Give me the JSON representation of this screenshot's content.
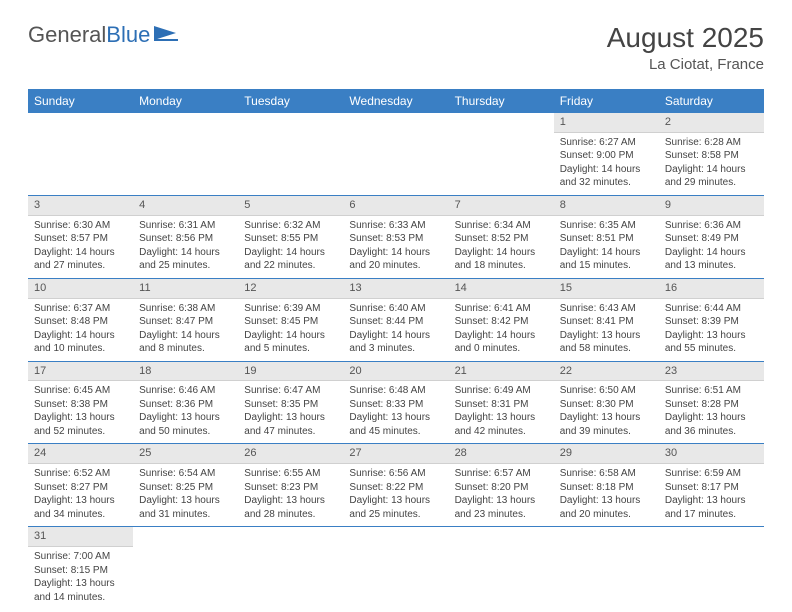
{
  "logo": {
    "text_gray": "General",
    "text_blue": "Blue"
  },
  "title": "August 2025",
  "location": "La Ciotat, France",
  "colors": {
    "header_bg": "#3a7fc4",
    "header_text": "#ffffff",
    "daynum_bg": "#e8e8e8",
    "row_border": "#3a7fc4",
    "body_text": "#444444",
    "logo_gray": "#555555",
    "logo_blue": "#2d6fb5",
    "page_bg": "#ffffff"
  },
  "typography": {
    "month_title_size": 28,
    "location_size": 15,
    "weekday_size": 12,
    "daynum_size": 11,
    "body_size": 10,
    "font_family": "Arial"
  },
  "weekdays": [
    "Sunday",
    "Monday",
    "Tuesday",
    "Wednesday",
    "Thursday",
    "Friday",
    "Saturday"
  ],
  "weeks": [
    [
      null,
      null,
      null,
      null,
      null,
      {
        "n": "1",
        "sr": "Sunrise: 6:27 AM",
        "ss": "Sunset: 9:00 PM",
        "d1": "Daylight: 14 hours",
        "d2": "and 32 minutes."
      },
      {
        "n": "2",
        "sr": "Sunrise: 6:28 AM",
        "ss": "Sunset: 8:58 PM",
        "d1": "Daylight: 14 hours",
        "d2": "and 29 minutes."
      }
    ],
    [
      {
        "n": "3",
        "sr": "Sunrise: 6:30 AM",
        "ss": "Sunset: 8:57 PM",
        "d1": "Daylight: 14 hours",
        "d2": "and 27 minutes."
      },
      {
        "n": "4",
        "sr": "Sunrise: 6:31 AM",
        "ss": "Sunset: 8:56 PM",
        "d1": "Daylight: 14 hours",
        "d2": "and 25 minutes."
      },
      {
        "n": "5",
        "sr": "Sunrise: 6:32 AM",
        "ss": "Sunset: 8:55 PM",
        "d1": "Daylight: 14 hours",
        "d2": "and 22 minutes."
      },
      {
        "n": "6",
        "sr": "Sunrise: 6:33 AM",
        "ss": "Sunset: 8:53 PM",
        "d1": "Daylight: 14 hours",
        "d2": "and 20 minutes."
      },
      {
        "n": "7",
        "sr": "Sunrise: 6:34 AM",
        "ss": "Sunset: 8:52 PM",
        "d1": "Daylight: 14 hours",
        "d2": "and 18 minutes."
      },
      {
        "n": "8",
        "sr": "Sunrise: 6:35 AM",
        "ss": "Sunset: 8:51 PM",
        "d1": "Daylight: 14 hours",
        "d2": "and 15 minutes."
      },
      {
        "n": "9",
        "sr": "Sunrise: 6:36 AM",
        "ss": "Sunset: 8:49 PM",
        "d1": "Daylight: 14 hours",
        "d2": "and 13 minutes."
      }
    ],
    [
      {
        "n": "10",
        "sr": "Sunrise: 6:37 AM",
        "ss": "Sunset: 8:48 PM",
        "d1": "Daylight: 14 hours",
        "d2": "and 10 minutes."
      },
      {
        "n": "11",
        "sr": "Sunrise: 6:38 AM",
        "ss": "Sunset: 8:47 PM",
        "d1": "Daylight: 14 hours",
        "d2": "and 8 minutes."
      },
      {
        "n": "12",
        "sr": "Sunrise: 6:39 AM",
        "ss": "Sunset: 8:45 PM",
        "d1": "Daylight: 14 hours",
        "d2": "and 5 minutes."
      },
      {
        "n": "13",
        "sr": "Sunrise: 6:40 AM",
        "ss": "Sunset: 8:44 PM",
        "d1": "Daylight: 14 hours",
        "d2": "and 3 minutes."
      },
      {
        "n": "14",
        "sr": "Sunrise: 6:41 AM",
        "ss": "Sunset: 8:42 PM",
        "d1": "Daylight: 14 hours",
        "d2": "and 0 minutes."
      },
      {
        "n": "15",
        "sr": "Sunrise: 6:43 AM",
        "ss": "Sunset: 8:41 PM",
        "d1": "Daylight: 13 hours",
        "d2": "and 58 minutes."
      },
      {
        "n": "16",
        "sr": "Sunrise: 6:44 AM",
        "ss": "Sunset: 8:39 PM",
        "d1": "Daylight: 13 hours",
        "d2": "and 55 minutes."
      }
    ],
    [
      {
        "n": "17",
        "sr": "Sunrise: 6:45 AM",
        "ss": "Sunset: 8:38 PM",
        "d1": "Daylight: 13 hours",
        "d2": "and 52 minutes."
      },
      {
        "n": "18",
        "sr": "Sunrise: 6:46 AM",
        "ss": "Sunset: 8:36 PM",
        "d1": "Daylight: 13 hours",
        "d2": "and 50 minutes."
      },
      {
        "n": "19",
        "sr": "Sunrise: 6:47 AM",
        "ss": "Sunset: 8:35 PM",
        "d1": "Daylight: 13 hours",
        "d2": "and 47 minutes."
      },
      {
        "n": "20",
        "sr": "Sunrise: 6:48 AM",
        "ss": "Sunset: 8:33 PM",
        "d1": "Daylight: 13 hours",
        "d2": "and 45 minutes."
      },
      {
        "n": "21",
        "sr": "Sunrise: 6:49 AM",
        "ss": "Sunset: 8:31 PM",
        "d1": "Daylight: 13 hours",
        "d2": "and 42 minutes."
      },
      {
        "n": "22",
        "sr": "Sunrise: 6:50 AM",
        "ss": "Sunset: 8:30 PM",
        "d1": "Daylight: 13 hours",
        "d2": "and 39 minutes."
      },
      {
        "n": "23",
        "sr": "Sunrise: 6:51 AM",
        "ss": "Sunset: 8:28 PM",
        "d1": "Daylight: 13 hours",
        "d2": "and 36 minutes."
      }
    ],
    [
      {
        "n": "24",
        "sr": "Sunrise: 6:52 AM",
        "ss": "Sunset: 8:27 PM",
        "d1": "Daylight: 13 hours",
        "d2": "and 34 minutes."
      },
      {
        "n": "25",
        "sr": "Sunrise: 6:54 AM",
        "ss": "Sunset: 8:25 PM",
        "d1": "Daylight: 13 hours",
        "d2": "and 31 minutes."
      },
      {
        "n": "26",
        "sr": "Sunrise: 6:55 AM",
        "ss": "Sunset: 8:23 PM",
        "d1": "Daylight: 13 hours",
        "d2": "and 28 minutes."
      },
      {
        "n": "27",
        "sr": "Sunrise: 6:56 AM",
        "ss": "Sunset: 8:22 PM",
        "d1": "Daylight: 13 hours",
        "d2": "and 25 minutes."
      },
      {
        "n": "28",
        "sr": "Sunrise: 6:57 AM",
        "ss": "Sunset: 8:20 PM",
        "d1": "Daylight: 13 hours",
        "d2": "and 23 minutes."
      },
      {
        "n": "29",
        "sr": "Sunrise: 6:58 AM",
        "ss": "Sunset: 8:18 PM",
        "d1": "Daylight: 13 hours",
        "d2": "and 20 minutes."
      },
      {
        "n": "30",
        "sr": "Sunrise: 6:59 AM",
        "ss": "Sunset: 8:17 PM",
        "d1": "Daylight: 13 hours",
        "d2": "and 17 minutes."
      }
    ],
    [
      {
        "n": "31",
        "sr": "Sunrise: 7:00 AM",
        "ss": "Sunset: 8:15 PM",
        "d1": "Daylight: 13 hours",
        "d2": "and 14 minutes."
      },
      null,
      null,
      null,
      null,
      null,
      null
    ]
  ]
}
